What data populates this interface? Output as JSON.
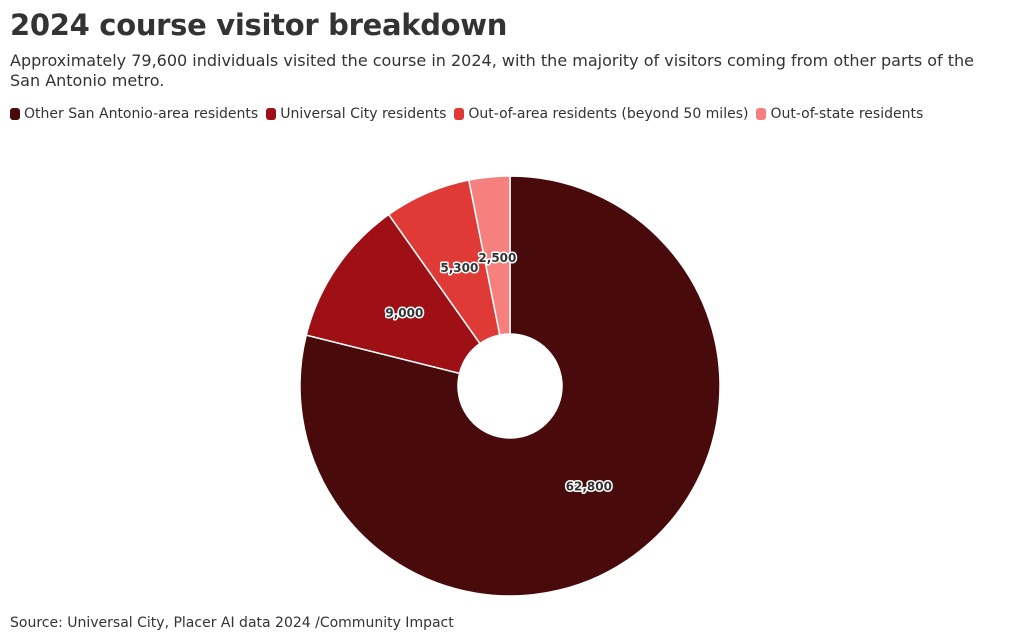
{
  "chart_data": {
    "type": "donut",
    "title": "2024 course visitor breakdown",
    "subtitle": "Approximately 79,600 individuals visited the course in 2024, with the majority of visitors coming from other parts of the San Antonio metro.",
    "source": "Source: Universal City, Placer AI data 2024 /Community Impact",
    "categories": [
      "Other San Antonio-area residents",
      "Universal City residents",
      "Out-of-area residents (beyond 50 miles)",
      "Out-of-state residents"
    ],
    "values": [
      62800,
      9000,
      5300,
      2500
    ],
    "value_labels": [
      "62,800",
      "9,000",
      "5,300",
      "2,500"
    ],
    "colors": [
      "#480a0a",
      "#9f1016",
      "#e03a37",
      "#f5807d"
    ]
  }
}
